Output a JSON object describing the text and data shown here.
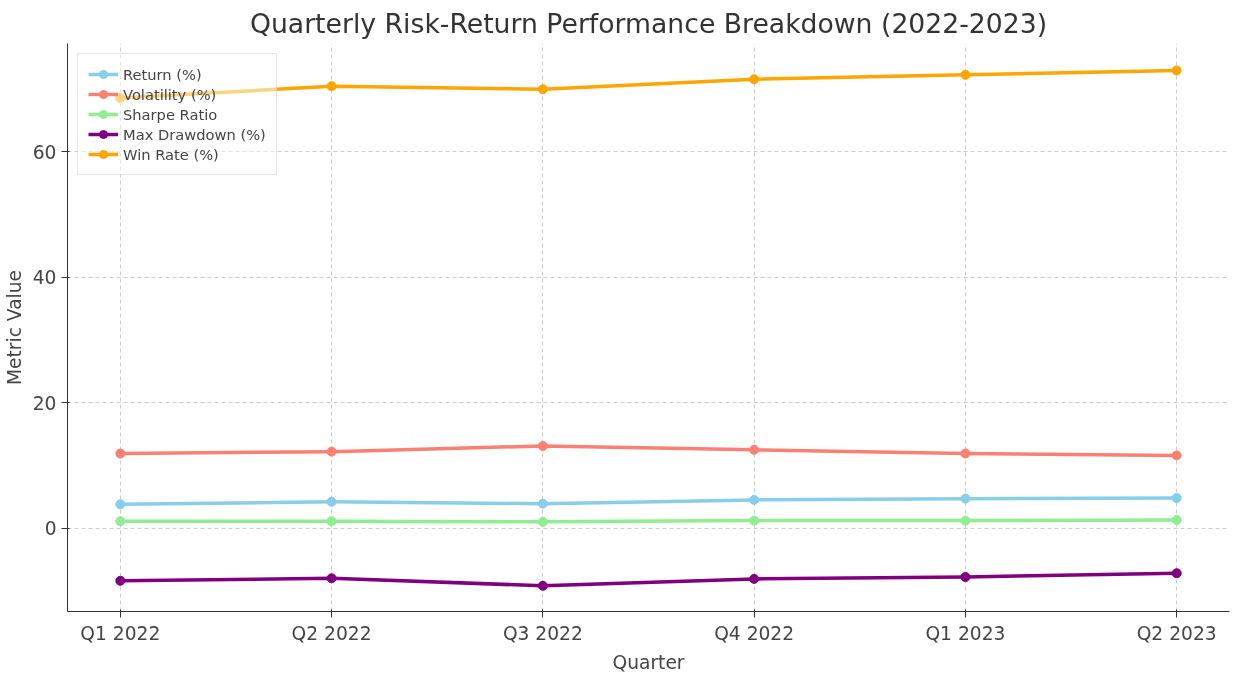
{
  "chart_data": {
    "type": "line",
    "title": "Quarterly Risk-Return Performance Breakdown (2022-2023)",
    "xlabel": "Quarter",
    "ylabel": "Metric Value",
    "categories": [
      "Q1 2022",
      "Q2 2022",
      "Q3 2022",
      "Q4 2022",
      "Q1 2023",
      "Q2 2023"
    ],
    "series": [
      {
        "name": "Return (%)",
        "color": "#87ceeb",
        "values": [
          3.8,
          4.2,
          3.9,
          4.5,
          4.7,
          4.8
        ]
      },
      {
        "name": "Volatility (%)",
        "color": "#fa8072",
        "values": [
          11.9,
          12.2,
          13.1,
          12.5,
          11.9,
          11.6
        ]
      },
      {
        "name": "Sharpe Ratio",
        "color": "#90ee90",
        "values": [
          1.1,
          1.1,
          1.0,
          1.2,
          1.2,
          1.3
        ]
      },
      {
        "name": "Max Drawdown (%)",
        "color": "#800080",
        "values": [
          -8.4,
          -8.0,
          -9.2,
          -8.1,
          -7.8,
          -7.2
        ]
      },
      {
        "name": "Win Rate (%)",
        "color": "#ffa500",
        "values": [
          68.6,
          70.5,
          70.0,
          71.6,
          72.3,
          73.0
        ]
      }
    ],
    "ylim": [
      -13.3,
      77.3
    ],
    "yticks": [
      0,
      20,
      40,
      60
    ],
    "grid": true,
    "legend": "top left",
    "marker": "circle",
    "line_style": "solid"
  }
}
